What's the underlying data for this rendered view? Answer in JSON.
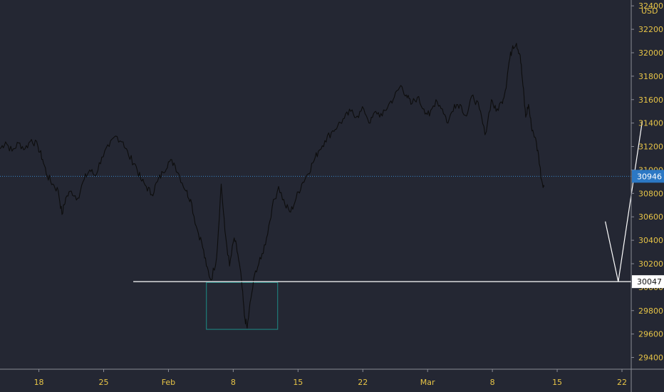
{
  "chart_data": {
    "type": "line",
    "currency": "USD",
    "colors": {
      "background": "#242733",
      "axis_text": "#e8c547",
      "price_line": "#0d0d0d",
      "current_price_line": "#3a86c8",
      "current_price_badge": "#2c78c4",
      "support_line": "#ffffff",
      "highlight_box": "#1e8c86",
      "projection": "#ffffff"
    },
    "y_ticks": [
      "29400",
      "29600",
      "29800",
      "30000",
      "30200",
      "30400",
      "30600",
      "30800",
      "31000",
      "31200",
      "31400",
      "31600",
      "31800",
      "32000",
      "32200",
      "32400"
    ],
    "ylim": [
      29300,
      32450
    ],
    "x_ticks": [
      {
        "label": "18",
        "day": 18
      },
      {
        "label": "25",
        "day": 25
      },
      {
        "label": "Feb",
        "day": 32
      },
      {
        "label": "8",
        "day": 39
      },
      {
        "label": "15",
        "day": 46
      },
      {
        "label": "22",
        "day": 53
      },
      {
        "label": "Mar",
        "day": 60
      },
      {
        "label": "8",
        "day": 67
      },
      {
        "label": "15",
        "day": 74
      },
      {
        "label": "22",
        "day": 81
      }
    ],
    "xlim": [
      13.8,
      82.0
    ],
    "series": [
      {
        "points": [
          [
            13.8,
            31180
          ],
          [
            14.4,
            31240
          ],
          [
            15.1,
            31160
          ],
          [
            15.8,
            31230
          ],
          [
            16.5,
            31180
          ],
          [
            17.2,
            31260
          ],
          [
            17.9,
            31200
          ],
          [
            18.4,
            31090
          ],
          [
            18.9,
            30950
          ],
          [
            19.5,
            30880
          ],
          [
            20.1,
            30820
          ],
          [
            20.5,
            30620
          ],
          [
            20.9,
            30760
          ],
          [
            21.5,
            30820
          ],
          [
            22.2,
            30760
          ],
          [
            22.9,
            30920
          ],
          [
            23.5,
            31000
          ],
          [
            24.1,
            30950
          ],
          [
            24.8,
            31110
          ],
          [
            25.6,
            31200
          ],
          [
            26.3,
            31290
          ],
          [
            27.1,
            31240
          ],
          [
            27.7,
            31120
          ],
          [
            28.4,
            31050
          ],
          [
            29.0,
            30920
          ],
          [
            29.6,
            30860
          ],
          [
            30.2,
            30790
          ],
          [
            30.8,
            30900
          ],
          [
            31.4,
            30980
          ],
          [
            32.0,
            31070
          ],
          [
            32.6,
            31060
          ],
          [
            33.2,
            30950
          ],
          [
            33.9,
            30820
          ],
          [
            34.4,
            30750
          ],
          [
            35.0,
            30520
          ],
          [
            35.6,
            30380
          ],
          [
            36.1,
            30180
          ],
          [
            36.6,
            30060
          ],
          [
            37.2,
            30250
          ],
          [
            37.7,
            30880
          ],
          [
            38.1,
            30480
          ],
          [
            38.6,
            30180
          ],
          [
            39.1,
            30420
          ],
          [
            39.5,
            30280
          ],
          [
            39.9,
            30050
          ],
          [
            40.2,
            29760
          ],
          [
            40.5,
            29650
          ],
          [
            40.9,
            29900
          ],
          [
            41.4,
            30140
          ],
          [
            42.0,
            30240
          ],
          [
            42.6,
            30420
          ],
          [
            43.2,
            30680
          ],
          [
            43.9,
            30860
          ],
          [
            44.6,
            30700
          ],
          [
            45.2,
            30640
          ],
          [
            45.8,
            30760
          ],
          [
            46.4,
            30880
          ],
          [
            47.0,
            30960
          ],
          [
            47.6,
            31060
          ],
          [
            48.2,
            31160
          ],
          [
            48.9,
            31250
          ],
          [
            49.6,
            31320
          ],
          [
            50.3,
            31380
          ],
          [
            51.0,
            31440
          ],
          [
            51.7,
            31500
          ],
          [
            52.4,
            31460
          ],
          [
            53.1,
            31520
          ],
          [
            53.8,
            31400
          ],
          [
            54.4,
            31500
          ],
          [
            55.1,
            31460
          ],
          [
            55.8,
            31560
          ],
          [
            56.4,
            31620
          ],
          [
            57.1,
            31720
          ],
          [
            57.7,
            31640
          ],
          [
            58.2,
            31560
          ],
          [
            58.9,
            31620
          ],
          [
            59.6,
            31520
          ],
          [
            60.2,
            31460
          ],
          [
            60.9,
            31600
          ],
          [
            61.6,
            31520
          ],
          [
            62.2,
            31400
          ],
          [
            62.9,
            31560
          ],
          [
            63.5,
            31560
          ],
          [
            64.2,
            31460
          ],
          [
            64.9,
            31640
          ],
          [
            65.6,
            31520
          ],
          [
            66.2,
            31300
          ],
          [
            66.9,
            31600
          ],
          [
            67.4,
            31500
          ],
          [
            68.0,
            31580
          ],
          [
            68.4,
            31680
          ],
          [
            68.8,
            31920
          ],
          [
            69.2,
            32060
          ],
          [
            69.6,
            32080
          ],
          [
            70.0,
            31980
          ],
          [
            70.3,
            31720
          ],
          [
            70.6,
            31450
          ],
          [
            70.9,
            31560
          ],
          [
            71.2,
            31380
          ],
          [
            71.6,
            31280
          ],
          [
            72.0,
            31120
          ],
          [
            72.3,
            30920
          ],
          [
            72.6,
            30860
          ]
        ]
      }
    ],
    "current_price": {
      "label": "30946",
      "value": 30946
    },
    "support_level": {
      "label": "30047",
      "value": 30047,
      "x_start": 28.2
    },
    "highlight_box": {
      "x_start": 36.1,
      "x_end": 43.8,
      "y_low": 29640,
      "y_high": 30040
    },
    "projection_path": [
      [
        79.2,
        30560
      ],
      [
        80.6,
        30047
      ],
      [
        83.2,
        31420
      ]
    ]
  }
}
